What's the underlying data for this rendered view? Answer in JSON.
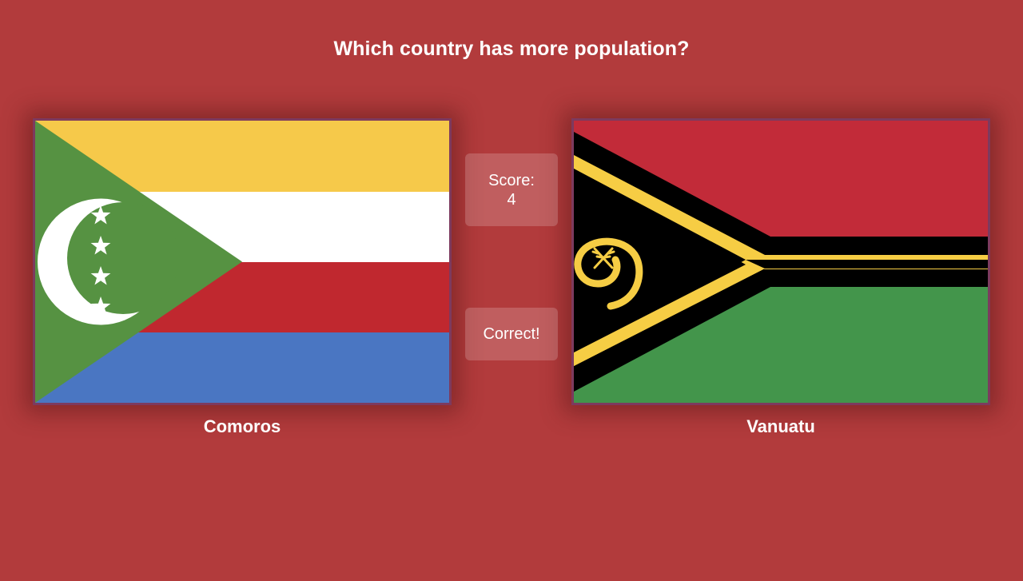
{
  "question": "Which country has more population?",
  "left_country": {
    "name": "Comoros",
    "flag_icon": "comoros-flag",
    "colors": {
      "yellow": "#f6c94a",
      "white": "#ffffff",
      "red": "#c0282f",
      "blue": "#4a76c2",
      "green": "#569242"
    }
  },
  "right_country": {
    "name": "Vanuatu",
    "flag_icon": "vanuatu-flag",
    "colors": {
      "red": "#c22b39",
      "green": "#43954b",
      "black": "#000000",
      "yellow": "#f6cd44"
    }
  },
  "score": {
    "label": "Score:",
    "value": "4"
  },
  "feedback": "Correct!",
  "theme": {
    "background": "#b23b3c",
    "card_border": "#7d3a5e"
  }
}
